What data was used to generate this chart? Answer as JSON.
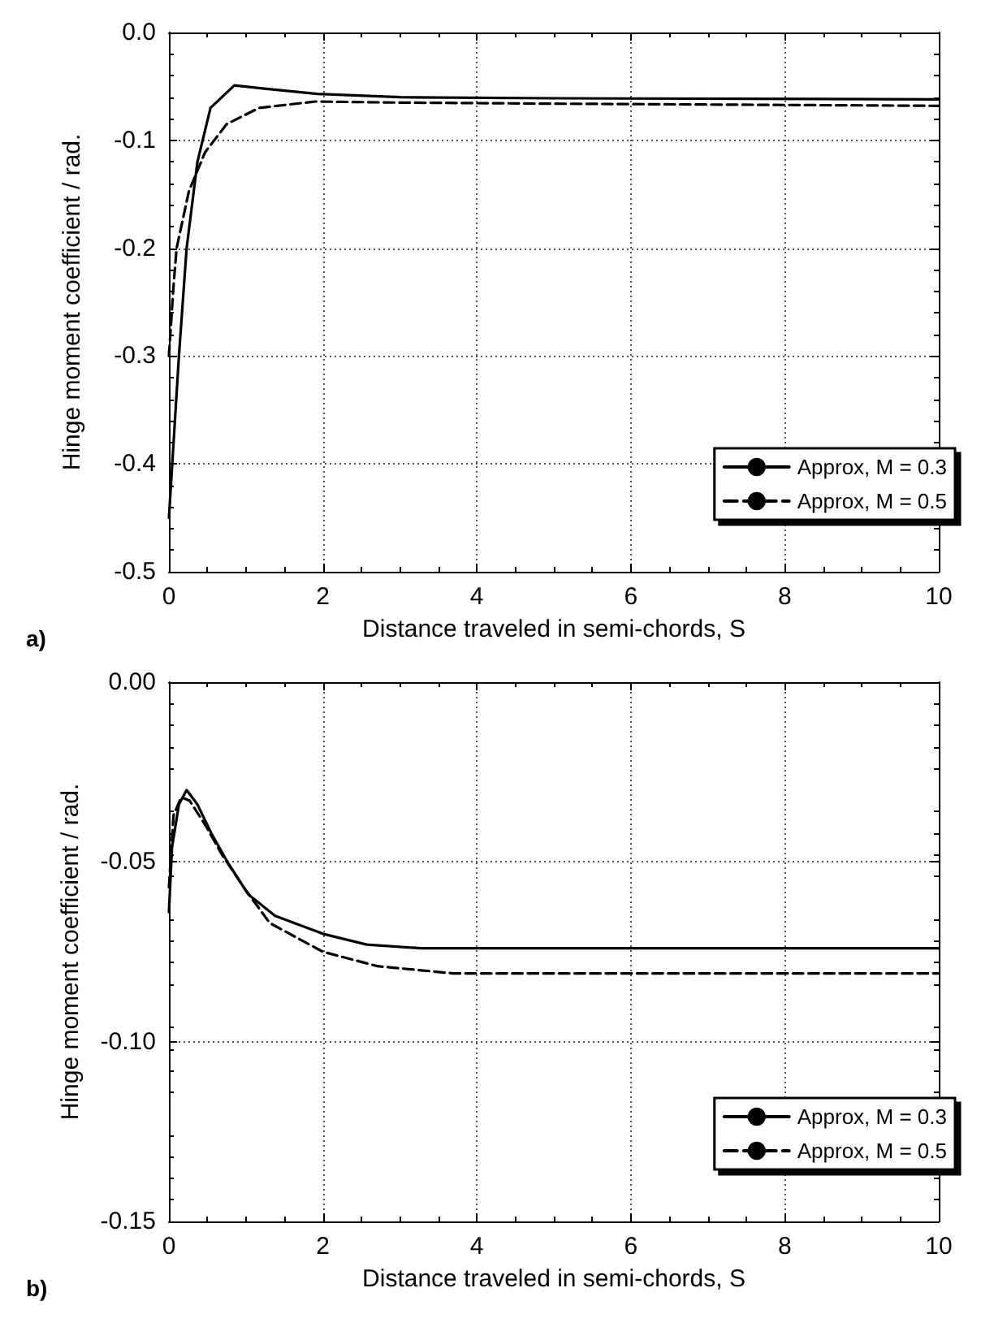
{
  "chart_data": [
    {
      "type": "line",
      "xlabel": "Distance traveled in semi-chords, S",
      "ylabel": "Hinge moment coefficient / rad.",
      "annotations": [
        "a)"
      ],
      "xlim": [
        0,
        10
      ],
      "xticks": [
        0,
        2,
        4,
        6,
        8,
        10
      ],
      "ylim": [
        -0.5,
        0
      ],
      "yticks": [
        {
          "value": -0.5,
          "label": "-0.5"
        },
        {
          "value": -0.4,
          "label": "-0.4"
        },
        {
          "value": -0.3,
          "label": "-0.3"
        },
        {
          "value": -0.2,
          "label": "-0.2"
        },
        {
          "value": -0.1,
          "label": "-0.1"
        },
        {
          "value": 0,
          "label": "0.0"
        }
      ],
      "grid": true,
      "legend": "bottom right",
      "series": [
        {
          "name": "Approx, M = 0.3",
          "color": "#000000",
          "line_style": "solid",
          "x": [
            0,
            0.13,
            0.23,
            0.37,
            0.54,
            0.85,
            1.24,
            1.93,
            3,
            5,
            10
          ],
          "values": [
            -0.45,
            -0.3,
            -0.2,
            -0.12,
            -0.07,
            -0.049,
            -0.052,
            -0.057,
            -0.06,
            -0.061,
            -0.062
          ]
        },
        {
          "name": "Approx, M = 0.5",
          "color": "#000000",
          "line_style": "dashed",
          "x": [
            0,
            0.06,
            0.1,
            0.26,
            0.47,
            0.75,
            1.17,
            1.9,
            3,
            5,
            10
          ],
          "values": [
            -0.3,
            -0.235,
            -0.2,
            -0.147,
            -0.111,
            -0.085,
            -0.07,
            -0.064,
            -0.065,
            -0.066,
            -0.068
          ]
        }
      ]
    },
    {
      "type": "line",
      "xlabel": "Distance traveled in semi-chords, S",
      "ylabel": "Hinge moment coefficient / rad.",
      "annotations": [
        "b)"
      ],
      "xlim": [
        0,
        10
      ],
      "xticks": [
        0,
        2,
        4,
        6,
        8,
        10
      ],
      "ylim": [
        -0.15,
        0
      ],
      "yticks": [
        {
          "value": -0.15,
          "label": "-0.15"
        },
        {
          "value": -0.1,
          "label": "-0.10"
        },
        {
          "value": -0.05,
          "label": "-0.05"
        },
        {
          "value": 0,
          "label": "0.00"
        }
      ],
      "grid": true,
      "legend": "bottom right",
      "series": [
        {
          "name": "Approx, M = 0.3",
          "color": "#000000",
          "line_style": "solid",
          "x": [
            0,
            0.04,
            0.13,
            0.23,
            0.37,
            0.55,
            0.76,
            1.03,
            1.38,
            2,
            2.57,
            3.27,
            5,
            10
          ],
          "values": [
            -0.064,
            -0.046,
            -0.034,
            -0.03,
            -0.034,
            -0.042,
            -0.05,
            -0.059,
            -0.065,
            -0.07,
            -0.073,
            -0.074,
            -0.074,
            -0.074
          ]
        },
        {
          "name": "Approx, M = 0.5",
          "color": "#000000",
          "line_style": "dashed",
          "x": [
            0,
            0.06,
            0.16,
            0.27,
            0.48,
            0.69,
            0.97,
            1.31,
            2,
            2.71,
            3.69,
            6,
            10
          ],
          "values": [
            -0.057,
            -0.037,
            -0.032,
            -0.033,
            -0.04,
            -0.048,
            -0.057,
            -0.067,
            -0.075,
            -0.079,
            -0.081,
            -0.081,
            -0.081
          ]
        }
      ]
    }
  ]
}
